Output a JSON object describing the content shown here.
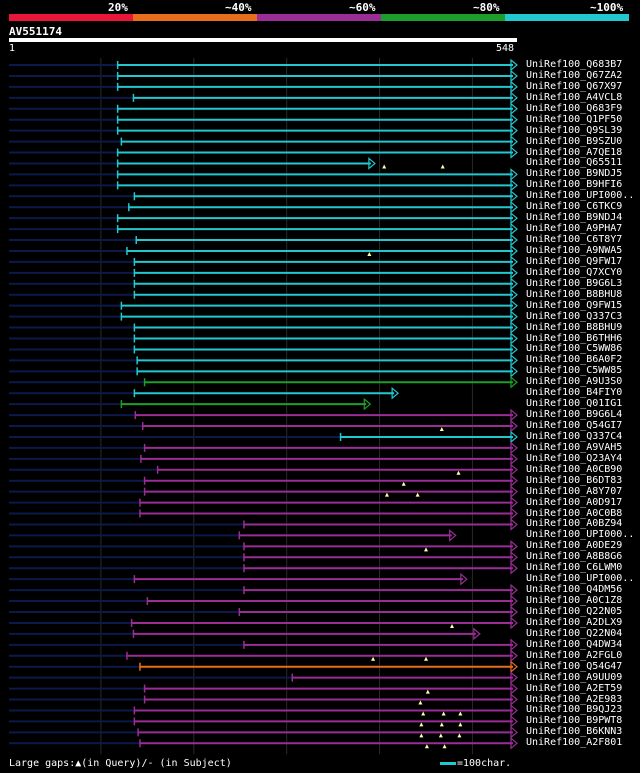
{
  "chart_data": {
    "type": "alignment-overview",
    "title": "AV551174",
    "query_length": 548,
    "query_start_label": "1",
    "query_end_label": "548",
    "legend": [
      {
        "label": "20%",
        "color": "#e8173a"
      },
      {
        "label": "~40%",
        "color": "#e86e1e"
      },
      {
        "label": "~60%",
        "color": "#9a2d96"
      },
      {
        "label": "~80%",
        "color": "#1d9e2a"
      },
      {
        "label": "~100%",
        "color": "#22c8d0"
      }
    ],
    "colors": {
      "cyan": "#22c8d0",
      "green": "#1d9e2a",
      "purple": "#9a2d96",
      "orange": "#e86e1e",
      "unaligned": "#0b1a4a",
      "gridline": "#2a2a2a",
      "gap": "#ffffaa"
    },
    "gridlines": [
      100,
      200,
      300,
      400,
      500
    ],
    "hits": [
      {
        "name": "UniRef100_Q683B7",
        "start": 118,
        "end": 548,
        "cls": "cyan",
        "arrow": true,
        "gaps": []
      },
      {
        "name": "UniRef100_Q67ZA2",
        "start": 118,
        "end": 548,
        "cls": "cyan",
        "arrow": true,
        "gaps": []
      },
      {
        "name": "UniRef100_Q67X97",
        "start": 118,
        "end": 548,
        "cls": "cyan",
        "arrow": true,
        "gaps": []
      },
      {
        "name": "UniRef100_A4VCL8",
        "start": 135,
        "end": 548,
        "cls": "cyan",
        "arrow": true,
        "gaps": []
      },
      {
        "name": "UniRef100_Q683F9",
        "start": 118,
        "end": 548,
        "cls": "cyan",
        "arrow": true,
        "gaps": []
      },
      {
        "name": "UniRef100_Q1PF50",
        "start": 118,
        "end": 548,
        "cls": "cyan",
        "arrow": true,
        "gaps": []
      },
      {
        "name": "UniRef100_Q9SL39",
        "start": 118,
        "end": 548,
        "cls": "cyan",
        "arrow": true,
        "gaps": []
      },
      {
        "name": "UniRef100_B9SZU0",
        "start": 122,
        "end": 548,
        "cls": "cyan",
        "arrow": true,
        "gaps": []
      },
      {
        "name": "UniRef100_A7QE18",
        "start": 118,
        "end": 548,
        "cls": "cyan",
        "arrow": true,
        "gaps": []
      },
      {
        "name": "UniRef100_Q65511",
        "start": 118,
        "end": 395,
        "cls": "cyan",
        "arrow": true,
        "gaps": [
          405,
          468
        ]
      },
      {
        "name": "UniRef100_B9NDJ5",
        "start": 118,
        "end": 548,
        "cls": "cyan",
        "arrow": true,
        "gaps": []
      },
      {
        "name": "UniRef100_B9HFI6",
        "start": 118,
        "end": 548,
        "cls": "cyan",
        "arrow": true,
        "gaps": []
      },
      {
        "name": "UniRef100_UPI000..",
        "start": 136,
        "end": 548,
        "cls": "cyan",
        "arrow": true,
        "gaps": []
      },
      {
        "name": "UniRef100_C6TKC9",
        "start": 130,
        "end": 548,
        "cls": "cyan",
        "arrow": true,
        "gaps": []
      },
      {
        "name": "UniRef100_B9NDJ4",
        "start": 118,
        "end": 548,
        "cls": "cyan",
        "arrow": true,
        "gaps": []
      },
      {
        "name": "UniRef100_A9PHA7",
        "start": 118,
        "end": 548,
        "cls": "cyan",
        "arrow": true,
        "gaps": []
      },
      {
        "name": "UniRef100_C6T8Y7",
        "start": 138,
        "end": 548,
        "cls": "cyan",
        "arrow": true,
        "gaps": []
      },
      {
        "name": "UniRef100_A9NWA5",
        "start": 128,
        "end": 548,
        "cls": "cyan",
        "arrow": true,
        "gaps": [
          389
        ]
      },
      {
        "name": "UniRef100_Q9FW17",
        "start": 136,
        "end": 548,
        "cls": "cyan",
        "arrow": true,
        "gaps": []
      },
      {
        "name": "UniRef100_Q7XCY0",
        "start": 136,
        "end": 548,
        "cls": "cyan",
        "arrow": true,
        "gaps": []
      },
      {
        "name": "UniRef100_B9G6L3",
        "start": 136,
        "end": 548,
        "cls": "cyan",
        "arrow": true,
        "gaps": []
      },
      {
        "name": "UniRef100_B8BHU8",
        "start": 136,
        "end": 548,
        "cls": "cyan",
        "arrow": true,
        "gaps": []
      },
      {
        "name": "UniRef100_Q9FW15",
        "start": 122,
        "end": 548,
        "cls": "cyan",
        "arrow": true,
        "gaps": []
      },
      {
        "name": "UniRef100_Q337C3",
        "start": 122,
        "end": 548,
        "cls": "cyan",
        "arrow": true,
        "gaps": []
      },
      {
        "name": "UniRef100_B8BHU9",
        "start": 136,
        "end": 548,
        "cls": "cyan",
        "arrow": true,
        "gaps": []
      },
      {
        "name": "UniRef100_B6THH6",
        "start": 136,
        "end": 548,
        "cls": "cyan",
        "arrow": true,
        "gaps": []
      },
      {
        "name": "UniRef100_C5WW86",
        "start": 136,
        "end": 548,
        "cls": "cyan",
        "arrow": true,
        "gaps": []
      },
      {
        "name": "UniRef100_B6A0F2",
        "start": 139,
        "end": 548,
        "cls": "cyan",
        "arrow": true,
        "gaps": []
      },
      {
        "name": "UniRef100_C5WW85",
        "start": 139,
        "end": 548,
        "cls": "cyan",
        "arrow": true,
        "gaps": []
      },
      {
        "name": "UniRef100_A9U3S0",
        "start": 147,
        "end": 548,
        "cls": "green",
        "arrow": true,
        "gaps": []
      },
      {
        "name": "UniRef100_B4FIY0",
        "start": 136,
        "end": 420,
        "cls": "cyan",
        "arrow": true,
        "gaps": []
      },
      {
        "name": "UniRef100_Q01IG1",
        "start": 122,
        "end": 390,
        "cls": "green",
        "arrow": true,
        "gaps": []
      },
      {
        "name": "UniRef100_B9G6L4",
        "start": 137,
        "end": 548,
        "cls": "purple",
        "arrow": true,
        "gaps": []
      },
      {
        "name": "UniRef100_Q54GI7",
        "start": 145,
        "end": 548,
        "cls": "purple",
        "arrow": true,
        "gaps": [
          467
        ]
      },
      {
        "name": "UniRef100_Q337C4",
        "start": 358,
        "end": 548,
        "cls": "cyan",
        "arrow": true,
        "gaps": []
      },
      {
        "name": "UniRef100_A9VAH5",
        "start": 147,
        "end": 548,
        "cls": "purple",
        "arrow": true,
        "gaps": []
      },
      {
        "name": "UniRef100_Q23AY4",
        "start": 143,
        "end": 548,
        "cls": "purple",
        "arrow": true,
        "gaps": []
      },
      {
        "name": "UniRef100_A0CB90",
        "start": 161,
        "end": 548,
        "cls": "purple",
        "arrow": true,
        "gaps": [
          485
        ]
      },
      {
        "name": "UniRef100_B6DT83",
        "start": 147,
        "end": 548,
        "cls": "purple",
        "arrow": true,
        "gaps": [
          426
        ]
      },
      {
        "name": "UniRef100_A8Y707",
        "start": 147,
        "end": 548,
        "cls": "purple",
        "arrow": true,
        "gaps": [
          408,
          441
        ]
      },
      {
        "name": "UniRef100_A0D917",
        "start": 142,
        "end": 548,
        "cls": "purple",
        "arrow": true,
        "gaps": []
      },
      {
        "name": "UniRef100_A0C0B8",
        "start": 142,
        "end": 548,
        "cls": "purple",
        "arrow": true,
        "gaps": []
      },
      {
        "name": "UniRef100_A0BZ94",
        "start": 254,
        "end": 548,
        "cls": "purple",
        "arrow": true,
        "gaps": []
      },
      {
        "name": "UniRef100_UPI000..",
        "start": 249,
        "end": 482,
        "cls": "purple",
        "arrow": true,
        "gaps": []
      },
      {
        "name": "UniRef100_A0DE29",
        "start": 254,
        "end": 548,
        "cls": "purple",
        "arrow": true,
        "gaps": [
          450
        ]
      },
      {
        "name": "UniRef100_A8B8G6",
        "start": 254,
        "end": 548,
        "cls": "purple",
        "arrow": true,
        "gaps": []
      },
      {
        "name": "UniRef100_C6LWM0",
        "start": 254,
        "end": 548,
        "cls": "purple",
        "arrow": true,
        "gaps": []
      },
      {
        "name": "UniRef100_UPI000..",
        "start": 136,
        "end": 494,
        "cls": "purple",
        "arrow": true,
        "gaps": []
      },
      {
        "name": "UniRef100_Q4DM56",
        "start": 254,
        "end": 548,
        "cls": "purple",
        "arrow": true,
        "gaps": []
      },
      {
        "name": "UniRef100_A0C1Z8",
        "start": 150,
        "end": 548,
        "cls": "purple",
        "arrow": true,
        "gaps": []
      },
      {
        "name": "UniRef100_Q22N05",
        "start": 249,
        "end": 548,
        "cls": "purple",
        "arrow": true,
        "gaps": []
      },
      {
        "name": "UniRef100_A2DLX9",
        "start": 133,
        "end": 548,
        "cls": "purple",
        "arrow": true,
        "gaps": [
          478
        ]
      },
      {
        "name": "UniRef100_Q22N04",
        "start": 135,
        "end": 508,
        "cls": "purple",
        "arrow": true,
        "gaps": []
      },
      {
        "name": "UniRef100_Q4DW34",
        "start": 254,
        "end": 548,
        "cls": "purple",
        "arrow": true,
        "gaps": []
      },
      {
        "name": "UniRef100_A2FGL0",
        "start": 128,
        "end": 548,
        "cls": "purple",
        "arrow": true,
        "gaps": [
          393,
          450
        ]
      },
      {
        "name": "UniRef100_Q54G47",
        "start": 142,
        "end": 548,
        "cls": "orange",
        "arrow": true,
        "gaps": []
      },
      {
        "name": "UniRef100_A9UU09",
        "start": 306,
        "end": 548,
        "cls": "purple",
        "arrow": true,
        "gaps": []
      },
      {
        "name": "UniRef100_A2ET59",
        "start": 147,
        "end": 548,
        "cls": "purple",
        "arrow": true,
        "gaps": [
          452
        ]
      },
      {
        "name": "UniRef100_A2E983",
        "start": 147,
        "end": 548,
        "cls": "purple",
        "arrow": true,
        "gaps": [
          444
        ]
      },
      {
        "name": "UniRef100_B9QJ23",
        "start": 136,
        "end": 548,
        "cls": "purple",
        "arrow": true,
        "gaps": [
          447,
          469,
          487
        ]
      },
      {
        "name": "UniRef100_B9PWT8",
        "start": 136,
        "end": 548,
        "cls": "purple",
        "arrow": true,
        "gaps": [
          445,
          467,
          487
        ]
      },
      {
        "name": "UniRef100_B6KNN3",
        "start": 140,
        "end": 548,
        "cls": "purple",
        "arrow": true,
        "gaps": [
          445,
          466,
          486
        ]
      },
      {
        "name": "UniRef100_A2F801",
        "start": 142,
        "end": 548,
        "cls": "purple",
        "arrow": true,
        "gaps": [
          451,
          470
        ]
      }
    ]
  },
  "footer": {
    "gaps_text": "Large gaps:▲(in Query)/- (in Subject)",
    "scale_text": "=100char."
  }
}
